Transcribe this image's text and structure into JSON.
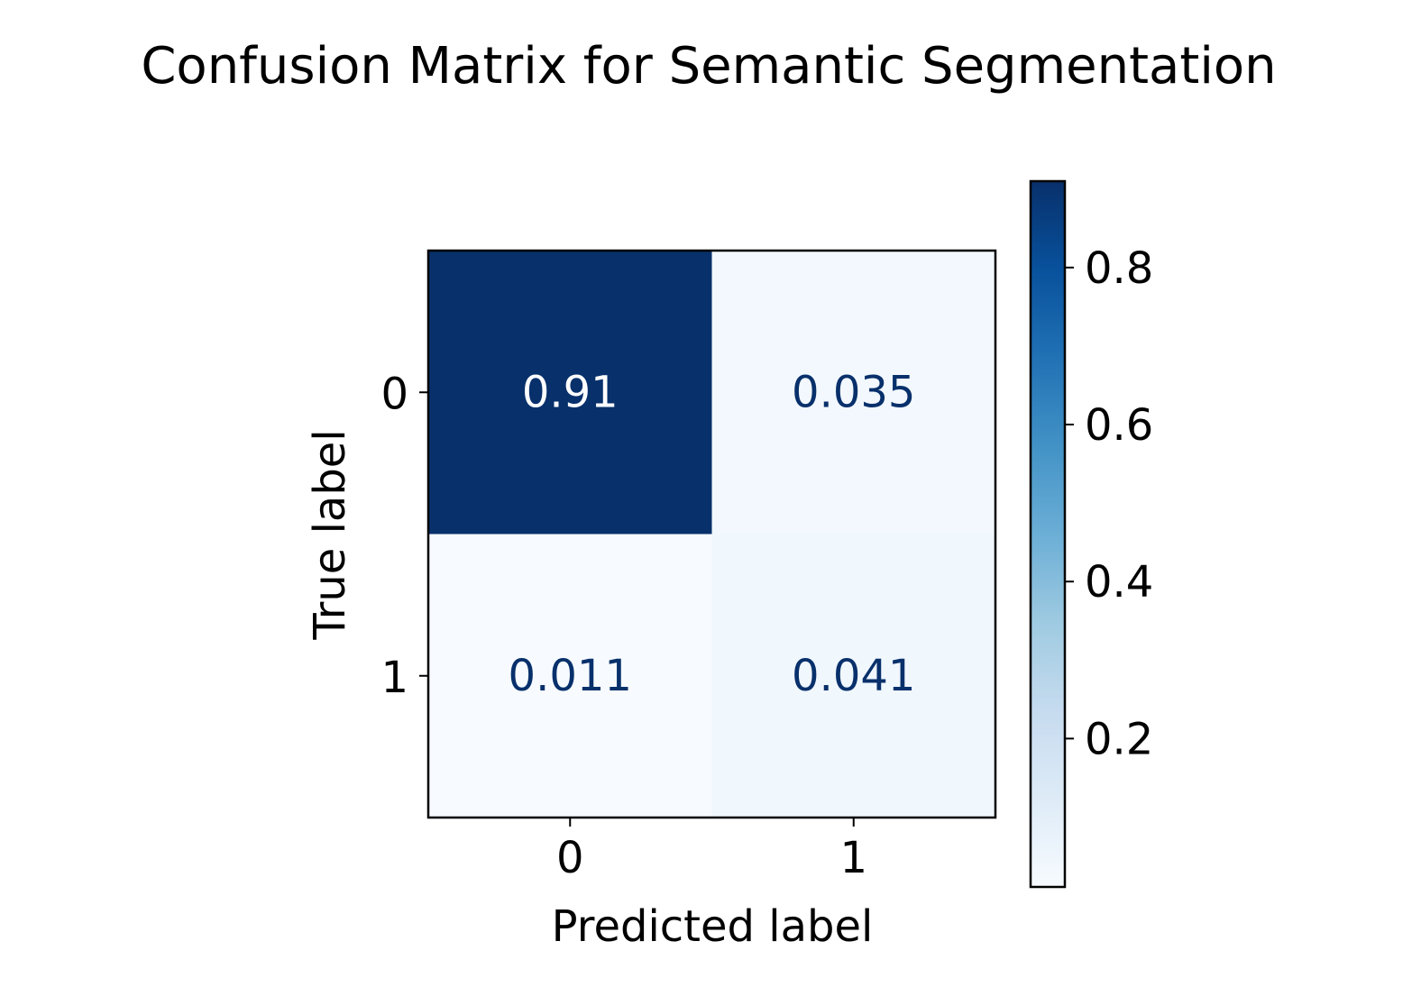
{
  "chart_data": {
    "type": "heatmap",
    "title": "Confusion Matrix for Semantic Segmentation",
    "xlabel": "Predicted label",
    "ylabel": "True label",
    "x_categories": [
      "0",
      "1"
    ],
    "y_categories": [
      "0",
      "1"
    ],
    "matrix": [
      [
        0.91,
        0.035
      ],
      [
        0.011,
        0.041
      ]
    ],
    "cell_labels": [
      [
        "0.91",
        "0.035"
      ],
      [
        "0.011",
        "0.041"
      ]
    ],
    "colormap": "Blues",
    "colorbar": {
      "range": [
        0.011,
        0.91
      ],
      "ticks": [
        0.2,
        0.4,
        0.6,
        0.8
      ],
      "tick_labels": [
        "0.2",
        "0.4",
        "0.6",
        "0.8"
      ]
    },
    "colors": {
      "low": "#f7fbff",
      "high": "#08306b",
      "text_light": "#ffffff",
      "text_dark": "#08306b"
    },
    "grid": false
  }
}
